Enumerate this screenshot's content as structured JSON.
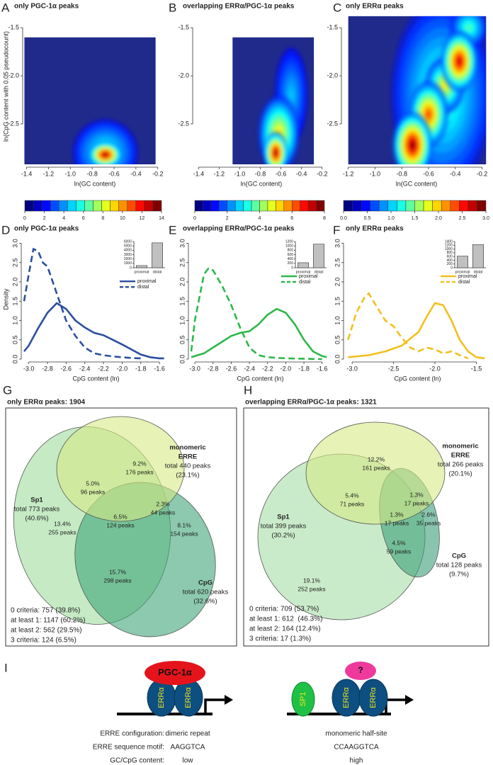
{
  "chart_data": [
    {
      "type": "heatmap",
      "letter": "A",
      "title": "only PGC-1α peaks",
      "x_label": "ln(GC content)",
      "y_label": "ln(CpG content with 0.05 pseudocount)",
      "color": "#1f2a8a",
      "xlim": [
        -1.41,
        -0.14
      ],
      "ylim": [
        -2.92,
        -1.3
      ],
      "xticks": [
        -1.4,
        -1.2,
        {
          "value": -1,
          "label": "-1.0"
        },
        -0.8,
        -0.6,
        -0.4,
        -0.2
      ],
      "yticks": [
        -1.5,
        {
          "value": -2,
          "label": "-2.0"
        },
        -2.5
      ],
      "extent": {
        "x": [
          -1.42,
          -0.22
        ],
        "y": [
          -2.92,
          -1.6
        ]
      },
      "hotspots": {
        "x": [
          -0.68,
          -0.68
        ],
        "y": [
          -2.8,
          -2.82
        ],
        "sx": [
          0.3,
          0.16
        ],
        "sy": [
          0.35,
          0.14
        ],
        "level": [
          5,
          14
        ]
      },
      "colorbar": {
        "lim": [
          0,
          14
        ],
        "ticks": [
          0,
          2,
          4,
          6,
          8,
          10,
          12,
          14
        ]
      }
    },
    {
      "type": "heatmap",
      "letter": "B",
      "title": "overlapping ERRα/PGC-1α peaks",
      "x_label": "ln(GC content)",
      "color": "#1f2a8a",
      "xlim": [
        -1.43,
        -0.15
      ],
      "ylim": [
        -2.92,
        -1.3
      ],
      "xticks": [
        -1.4,
        -1.2,
        {
          "value": -1,
          "label": "-1.0"
        },
        -0.8,
        -0.6,
        -0.4,
        -0.2
      ],
      "yticks": [
        -1.5,
        {
          "value": -2,
          "label": "-2.0"
        },
        -2.5
      ],
      "extent": {
        "x": [
          -1.07,
          -0.28
        ],
        "y": [
          -2.92,
          -1.6
        ]
      },
      "hotspots": {
        "x": [
          -0.5,
          -0.62,
          -0.65
        ],
        "y": [
          -2.2,
          -2.6,
          -2.8
        ],
        "sx": [
          0.16,
          0.2,
          0.12
        ],
        "sy": [
          0.5,
          0.4,
          0.22
        ],
        "level": [
          2,
          5,
          8
        ]
      },
      "colorbar": {
        "lim": [
          0,
          8
        ],
        "ticks": [
          0,
          2,
          4,
          6,
          8
        ]
      }
    },
    {
      "type": "heatmap",
      "letter": "C",
      "title": "only ERRα peaks",
      "x_label": "ln(GC content)",
      "color": "#1f2a8a",
      "xlim": [
        -1.23,
        -0.15
      ],
      "ylim": [
        -2.92,
        -1.3
      ],
      "xticks": [
        -1.2,
        {
          "value": -1,
          "label": "-1.0"
        },
        -0.8,
        -0.6,
        -0.4,
        -0.2
      ],
      "yticks": [
        -1.5,
        {
          "value": -2,
          "label": "-2.0"
        },
        -2.5
      ],
      "extent": {
        "x": [
          -1.2,
          -0.17
        ],
        "y": [
          -2.92,
          -1.38
        ]
      },
      "hotspots": {
        "x": [
          -0.5,
          -0.3,
          -0.48,
          -0.6,
          -0.37,
          -0.72
        ],
        "y": [
          -2.2,
          -1.5,
          -2.1,
          -2.4,
          -1.85,
          -2.72
        ],
        "sx": [
          0.38,
          0.14,
          0.15,
          0.15,
          0.14,
          0.15
        ],
        "sy": [
          1.0,
          0.22,
          0.3,
          0.35,
          0.32,
          0.35
        ],
        "level": [
          1.2,
          1.2,
          1.8,
          2.4,
          2.8,
          3.0
        ]
      },
      "colorbar": {
        "lim": [
          0,
          3
        ],
        "ticks": [
          {
            "value": 0,
            "label": "0.0"
          },
          0.5,
          {
            "value": 1,
            "label": "1.0"
          },
          1.5,
          {
            "value": 2,
            "label": "2.0"
          },
          2.5,
          {
            "value": 3,
            "label": "3.0"
          }
        ]
      }
    },
    {
      "type": "density",
      "letter": "D",
      "title": "only PGC-1α peaks",
      "x_label": "CpG content (ln)",
      "y_label": "Density",
      "xlim": [
        -3.05,
        -1.51
      ],
      "ylim": [
        0,
        3.1
      ],
      "xticks": [
        {
          "value": -3,
          "label": "-3.0"
        },
        -2.8,
        -2.6,
        -2.4,
        -2.2,
        {
          "value": -2,
          "label": "-2.0"
        },
        -1.8,
        -1.6
      ],
      "yticks": [
        {
          "value": 0,
          "label": "0.0"
        },
        0.5,
        {
          "value": 1,
          "label": "1.0"
        },
        1.5,
        {
          "value": 2,
          "label": "2.0"
        },
        2.5,
        {
          "value": 3,
          "label": "3.0"
        }
      ],
      "legend": "right",
      "series": [
        {
          "name": "proximal",
          "color": "#2b4fa0",
          "style": "solid",
          "x": [
            -3.05,
            -3.0,
            -2.9,
            -2.8,
            -2.7,
            -2.6,
            -2.5,
            -2.4,
            -2.3,
            -2.2,
            -2.1,
            -2.0,
            -1.9,
            -1.8,
            -1.7,
            -1.6,
            -1.55
          ],
          "values": [
            0.2,
            0.35,
            0.8,
            1.2,
            1.45,
            1.3,
            1.0,
            0.82,
            0.68,
            0.62,
            0.5,
            0.38,
            0.25,
            0.12,
            0.05,
            0.02,
            0.02
          ]
        },
        {
          "name": "distal",
          "color": "#2b4fa0",
          "style": "dashed",
          "x": [
            -3.05,
            -3.0,
            -2.95,
            -2.9,
            -2.85,
            -2.8,
            -2.7,
            -2.6,
            -2.5,
            -2.4,
            -2.3,
            -2.2,
            -2.1,
            -2.0,
            -1.9,
            -1.8
          ],
          "values": [
            1.5,
            2.2,
            2.85,
            2.8,
            2.5,
            2.4,
            1.7,
            1.0,
            0.6,
            0.3,
            0.15,
            0.1,
            0.07,
            0.05,
            0.03,
            0.02
          ]
        }
      ],
      "inset": {
        "type": "bar",
        "categories": [
          "proximal",
          "distal"
        ],
        "values": [
          500,
          5700
        ],
        "color": "#c0c0c0",
        "ylim": [
          0,
          6000
        ],
        "yticks": [
          0,
          1000,
          2000,
          3000,
          4000,
          5000,
          6000
        ]
      }
    },
    {
      "type": "density",
      "letter": "E",
      "title": "overlapping ERRα/PGC-1α peaks",
      "x_label": "CpG content (ln)",
      "xlim": [
        -3.04,
        -1.52
      ],
      "ylim": [
        0,
        3.1
      ],
      "xticks": [
        {
          "value": -3,
          "label": "-3.0"
        },
        -2.8,
        -2.6,
        -2.4,
        -2.2,
        {
          "value": -2,
          "label": "-2.0"
        },
        -1.8,
        -1.6
      ],
      "yticks": [
        {
          "value": 0,
          "label": "0.0"
        },
        0.5,
        {
          "value": 1,
          "label": "1.0"
        },
        1.5,
        {
          "value": 2,
          "label": "2.0"
        },
        2.5,
        {
          "value": 3,
          "label": "3.0"
        }
      ],
      "legend": "upper right",
      "series": [
        {
          "name": "proximal",
          "color": "#2eb84a",
          "style": "solid",
          "x": [
            -3.04,
            -2.9,
            -2.8,
            -2.7,
            -2.6,
            -2.5,
            -2.4,
            -2.3,
            -2.2,
            -2.1,
            -2.0,
            -1.9,
            -1.8,
            -1.7,
            -1.6,
            -1.55
          ],
          "values": [
            0.05,
            0.15,
            0.3,
            0.45,
            0.6,
            0.68,
            0.72,
            0.9,
            1.15,
            1.3,
            1.2,
            0.9,
            0.5,
            0.2,
            0.08,
            0.05
          ]
        },
        {
          "name": "distal",
          "color": "#2eb84a",
          "style": "dashed",
          "x": [
            -3.04,
            -3.0,
            -2.9,
            -2.85,
            -2.8,
            -2.7,
            -2.6,
            -2.5,
            -2.4,
            -2.3,
            -2.2,
            -2.0,
            -1.6
          ],
          "values": [
            0.2,
            1.0,
            2.2,
            2.35,
            2.3,
            1.9,
            1.4,
            0.8,
            0.3,
            0.1,
            0.05,
            0.02,
            0
          ]
        }
      ],
      "inset": {
        "type": "bar",
        "categories": [
          "proximal",
          "distal"
        ],
        "values": [
          230,
          1080
        ],
        "color": "#c0c0c0",
        "ylim": [
          0,
          1200
        ],
        "yticks": [
          0,
          200,
          400,
          600,
          800,
          1000,
          1200
        ]
      }
    },
    {
      "type": "density",
      "letter": "F",
      "title": "only ERRα peaks",
      "x_label": "CpG content (ln)",
      "xlim": [
        -3.07,
        -1.35
      ],
      "ylim": [
        0,
        3.1
      ],
      "xticks": [
        {
          "value": -3,
          "label": "-3.0"
        },
        -2.5,
        {
          "value": -2,
          "label": "-2.0"
        },
        -1.5
      ],
      "yticks": [
        {
          "value": 0,
          "label": "0.0"
        },
        0.5,
        {
          "value": 1,
          "label": "1.0"
        },
        1.5,
        {
          "value": 2,
          "label": "2.0"
        },
        2.5,
        {
          "value": 3,
          "label": "3.0"
        }
      ],
      "legend": "upper right",
      "series": [
        {
          "name": "proximal",
          "color": "#f2c01e",
          "style": "solid",
          "x": [
            -3.05,
            -2.8,
            -2.6,
            -2.4,
            -2.2,
            -2.1,
            -2.0,
            -1.9,
            -1.8,
            -1.7,
            -1.6,
            -1.5,
            -1.4
          ],
          "values": [
            0.05,
            0.1,
            0.2,
            0.35,
            0.7,
            1.1,
            1.45,
            1.4,
            1.0,
            0.5,
            0.2,
            0.05,
            0.02
          ]
        },
        {
          "name": "distal",
          "color": "#f2c01e",
          "style": "dashed",
          "x": [
            -3.05,
            -2.95,
            -2.85,
            -2.8,
            -2.7,
            -2.6,
            -2.5,
            -2.4,
            -2.3,
            -2.2,
            -2.1,
            -2.0,
            -1.9,
            -1.8,
            -1.7,
            -1.6
          ],
          "values": [
            0.5,
            1.2,
            1.6,
            1.7,
            1.35,
            1.0,
            0.85,
            0.55,
            0.3,
            0.2,
            0.3,
            0.25,
            0.15,
            0.2,
            0.1,
            0.02
          ]
        }
      ],
      "inset": {
        "type": "bar",
        "categories": [
          "proximal",
          "distal"
        ],
        "values": [
          620,
          1240
        ],
        "color": "#c0c0c0",
        "ylim": [
          0,
          1400
        ],
        "yticks": [
          0,
          200,
          400,
          600,
          800,
          1000,
          1200,
          1400
        ]
      }
    }
  ],
  "venns": [
    {
      "letter": "G",
      "title": "only ERRα peaks: 1904",
      "sets": [
        {
          "name": [
            "Sp1"
          ],
          "total": "total 773 peaks",
          "share": "(40.6%)"
        },
        {
          "name": [
            "monomeric",
            "ERRE"
          ],
          "total": "total 440 peaks",
          "share": "(23.1%)"
        },
        {
          "name": [
            "CpG"
          ],
          "total": "total 620 peaks",
          "share": "(32.6%)"
        }
      ],
      "regions": [
        [
          "9.2%",
          "176 peaks"
        ],
        [
          "5.0%",
          "96 peaks"
        ],
        [
          "13.4%",
          "255 peaks"
        ],
        [
          "6.5%",
          "124 peaks"
        ],
        [
          "2.3%",
          "44 peaks"
        ],
        [
          "8.1%",
          "154 peaks"
        ],
        [
          "15.7%",
          "298 peaks"
        ]
      ],
      "criteria": [
        "0 criteria: 757 (39.8%)",
        "at least 1: 1147 (60.2%)",
        "at least 2: 562 (29.5%)",
        "3 criteria: 124 (6.5%)"
      ]
    },
    {
      "letter": "H",
      "title": "overlapping ERRα/PGC-1α peaks: 1321",
      "sets": [
        {
          "name": [
            "Sp1"
          ],
          "total": "total 399 peaks",
          "share": "(30.2%)"
        },
        {
          "name": [
            "monomeric",
            "ERRE"
          ],
          "total": "total 266 peaks",
          "share": "(20.1%)"
        },
        {
          "name": [
            "CpG"
          ],
          "total": "total 128 peaks",
          "share": "(9.7%)"
        }
      ],
      "regions": [
        [
          "12.2%",
          "161 peaks"
        ],
        [
          "5.4%",
          "71 peaks"
        ],
        [
          "1.3%",
          "17 peaks"
        ],
        [
          "1.3%",
          "17 peaks"
        ],
        [
          "2.6%",
          "35 peaks"
        ],
        [
          "4.5%",
          "59 peaks"
        ],
        [
          "19.1%",
          "252 peaks"
        ]
      ],
      "criteria": [
        "0 criteria: 709 (53.7%)",
        "at least 1: 612  (46.3%)",
        "at least 2: 164 (12.4%)",
        "3 criteria: 17 (1.3%)"
      ]
    }
  ],
  "model": {
    "letter": "I",
    "left": {
      "coactivator": "PGC-1α",
      "receptors": [
        "ERRα",
        "ERRα"
      ]
    },
    "right": {
      "cofactor": "?",
      "factor": "SP1",
      "receptors": [
        "ERRα",
        "ERRα"
      ]
    },
    "rows": [
      [
        "ERRE configuration:",
        "dimeric repeat",
        "monomeric half-site"
      ],
      [
        "ERRE sequence motif:",
        "AAGGTCA",
        "CCAAGGTCA"
      ],
      [
        "GC/CpG content:",
        "low",
        "high"
      ]
    ]
  }
}
